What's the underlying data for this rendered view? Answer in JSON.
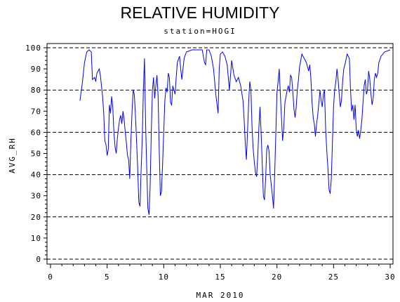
{
  "chart_data": {
    "type": "line",
    "title": "RELATIVE HUMIDITY",
    "subtitle": "station=HOGI",
    "xlabel": "MAR 2010",
    "ylabel": "AVG_RH",
    "xlim": [
      0,
      30
    ],
    "ylim": [
      0,
      100
    ],
    "x_ticks": [
      0,
      5,
      10,
      15,
      20,
      25,
      30
    ],
    "y_ticks": [
      0,
      10,
      20,
      30,
      40,
      50,
      60,
      70,
      80,
      90,
      100
    ],
    "grid": "dashed horizontal lines at 0, 20, 40, 60, 80, 100",
    "grid_y": [
      0,
      20,
      40,
      60,
      80,
      100
    ],
    "line_color": "#0000ff",
    "series": [
      {
        "values": [
          [
            2.6,
            75
          ],
          [
            2.8,
            83
          ],
          [
            3.0,
            93
          ],
          [
            3.2,
            98
          ],
          [
            3.4,
            99
          ],
          [
            3.6,
            98
          ],
          [
            3.7,
            85
          ],
          [
            3.9,
            86
          ],
          [
            4.0,
            84
          ],
          [
            4.1,
            88
          ],
          [
            4.2,
            89
          ],
          [
            4.3,
            90
          ],
          [
            4.4,
            87
          ],
          [
            4.5,
            82
          ],
          [
            4.6,
            77
          ],
          [
            4.7,
            69
          ],
          [
            4.8,
            56
          ],
          [
            4.9,
            54
          ],
          [
            5.0,
            49
          ],
          [
            5.1,
            52
          ],
          [
            5.2,
            73
          ],
          [
            5.3,
            69
          ],
          [
            5.4,
            77
          ],
          [
            5.5,
            72
          ],
          [
            5.6,
            60
          ],
          [
            5.7,
            53
          ],
          [
            5.8,
            50
          ],
          [
            5.9,
            57
          ],
          [
            6.0,
            62
          ],
          [
            6.1,
            66
          ],
          [
            6.2,
            68
          ],
          [
            6.3,
            64
          ],
          [
            6.4,
            70
          ],
          [
            6.5,
            66
          ],
          [
            6.6,
            60
          ],
          [
            6.7,
            55
          ],
          [
            6.8,
            49
          ],
          [
            6.9,
            47
          ],
          [
            7.0,
            38
          ],
          [
            7.1,
            56
          ],
          [
            7.2,
            70
          ],
          [
            7.3,
            80
          ],
          [
            7.4,
            78
          ],
          [
            7.5,
            68
          ],
          [
            7.6,
            56
          ],
          [
            7.7,
            43
          ],
          [
            7.8,
            27
          ],
          [
            7.9,
            25
          ],
          [
            8.0,
            42
          ],
          [
            8.1,
            57
          ],
          [
            8.2,
            80
          ],
          [
            8.3,
            95
          ],
          [
            8.4,
            64
          ],
          [
            8.5,
            43
          ],
          [
            8.6,
            24
          ],
          [
            8.7,
            21
          ],
          [
            8.8,
            35
          ],
          [
            8.9,
            60
          ],
          [
            9.0,
            80
          ],
          [
            9.1,
            86
          ],
          [
            9.2,
            76
          ],
          [
            9.3,
            82
          ],
          [
            9.4,
            87
          ],
          [
            9.5,
            77
          ],
          [
            9.6,
            52
          ],
          [
            9.7,
            30
          ],
          [
            9.8,
            32
          ],
          [
            9.9,
            45
          ],
          [
            10.0,
            60
          ],
          [
            10.1,
            75
          ],
          [
            10.2,
            81
          ],
          [
            10.3,
            79
          ],
          [
            10.4,
            88
          ],
          [
            10.5,
            86
          ],
          [
            10.6,
            74
          ],
          [
            10.7,
            73
          ],
          [
            10.8,
            82
          ],
          [
            10.9,
            80
          ],
          [
            11.0,
            78
          ],
          [
            11.1,
            86
          ],
          [
            11.2,
            93
          ],
          [
            11.4,
            96
          ],
          [
            11.5,
            90
          ],
          [
            11.6,
            85
          ],
          [
            11.8,
            95
          ],
          [
            12.0,
            98
          ],
          [
            12.5,
            99
          ],
          [
            13.0,
            99
          ],
          [
            13.4,
            99
          ],
          [
            13.6,
            93
          ],
          [
            13.7,
            92
          ],
          [
            13.8,
            99
          ],
          [
            14.0,
            99
          ],
          [
            14.2,
            96
          ],
          [
            14.4,
            90
          ],
          [
            14.6,
            78
          ],
          [
            14.8,
            69
          ],
          [
            14.9,
            90
          ],
          [
            15.0,
            97
          ],
          [
            15.2,
            98
          ],
          [
            15.4,
            96
          ],
          [
            15.6,
            92
          ],
          [
            15.8,
            80
          ],
          [
            16.0,
            94
          ],
          [
            16.2,
            87
          ],
          [
            16.4,
            84
          ],
          [
            16.6,
            86
          ],
          [
            16.8,
            82
          ],
          [
            17.0,
            75
          ],
          [
            17.1,
            66
          ],
          [
            17.2,
            55
          ],
          [
            17.3,
            47
          ],
          [
            17.4,
            60
          ],
          [
            17.5,
            74
          ],
          [
            17.6,
            84
          ],
          [
            17.7,
            80
          ],
          [
            17.8,
            62
          ],
          [
            17.9,
            52
          ],
          [
            18.0,
            46
          ],
          [
            18.1,
            41
          ],
          [
            18.2,
            39
          ],
          [
            18.3,
            48
          ],
          [
            18.4,
            62
          ],
          [
            18.5,
            72
          ],
          [
            18.6,
            60
          ],
          [
            18.7,
            45
          ],
          [
            18.8,
            30
          ],
          [
            18.9,
            28
          ],
          [
            19.0,
            38
          ],
          [
            19.1,
            52
          ],
          [
            19.2,
            54
          ],
          [
            19.3,
            51
          ],
          [
            19.4,
            40
          ],
          [
            19.5,
            35
          ],
          [
            19.6,
            30
          ],
          [
            19.7,
            24
          ],
          [
            19.8,
            40
          ],
          [
            19.9,
            60
          ],
          [
            20.0,
            79
          ],
          [
            20.1,
            84
          ],
          [
            20.2,
            90
          ],
          [
            20.3,
            78
          ],
          [
            20.4,
            67
          ],
          [
            20.5,
            56
          ],
          [
            20.6,
            62
          ],
          [
            20.7,
            74
          ],
          [
            20.8,
            77
          ],
          [
            20.9,
            80
          ],
          [
            21.0,
            82
          ],
          [
            21.1,
            79
          ],
          [
            21.2,
            87
          ],
          [
            21.3,
            86
          ],
          [
            21.4,
            79
          ],
          [
            21.5,
            71
          ],
          [
            21.6,
            67
          ],
          [
            21.7,
            72
          ],
          [
            21.8,
            80
          ],
          [
            21.9,
            85
          ],
          [
            22.0,
            91
          ],
          [
            22.2,
            97
          ],
          [
            22.4,
            95
          ],
          [
            22.6,
            93
          ],
          [
            22.8,
            89
          ],
          [
            22.9,
            92
          ],
          [
            23.0,
            85
          ],
          [
            23.1,
            74
          ],
          [
            23.2,
            67
          ],
          [
            23.3,
            64
          ],
          [
            23.4,
            58
          ],
          [
            23.5,
            64
          ],
          [
            23.6,
            68
          ],
          [
            23.7,
            74
          ],
          [
            23.8,
            80
          ],
          [
            23.9,
            75
          ],
          [
            24.0,
            72
          ],
          [
            24.1,
            78
          ],
          [
            24.2,
            80
          ],
          [
            24.3,
            62
          ],
          [
            24.4,
            51
          ],
          [
            24.5,
            43
          ],
          [
            24.6,
            33
          ],
          [
            24.7,
            31
          ],
          [
            24.8,
            38
          ],
          [
            24.9,
            55
          ],
          [
            25.0,
            72
          ],
          [
            25.1,
            80
          ],
          [
            25.2,
            84
          ],
          [
            25.3,
            90
          ],
          [
            25.4,
            85
          ],
          [
            25.5,
            78
          ],
          [
            25.6,
            72
          ],
          [
            25.7,
            75
          ],
          [
            25.8,
            84
          ],
          [
            25.9,
            90
          ],
          [
            26.0,
            92
          ],
          [
            26.2,
            97
          ],
          [
            26.4,
            95
          ],
          [
            26.5,
            80
          ],
          [
            26.6,
            70
          ],
          [
            26.7,
            73
          ],
          [
            26.8,
            66
          ],
          [
            26.9,
            73
          ],
          [
            27.0,
            62
          ],
          [
            27.1,
            58
          ],
          [
            27.2,
            61
          ],
          [
            27.3,
            57
          ],
          [
            27.4,
            61
          ],
          [
            27.5,
            66
          ],
          [
            27.6,
            74
          ],
          [
            27.7,
            82
          ],
          [
            27.8,
            85
          ],
          [
            27.9,
            78
          ],
          [
            28.0,
            80
          ],
          [
            28.1,
            89
          ],
          [
            28.2,
            85
          ],
          [
            28.3,
            78
          ],
          [
            28.4,
            73
          ],
          [
            28.5,
            76
          ],
          [
            28.6,
            85
          ],
          [
            28.7,
            88
          ],
          [
            28.8,
            86
          ],
          [
            28.9,
            88
          ],
          [
            29.0,
            93
          ],
          [
            29.2,
            96
          ],
          [
            29.5,
            98
          ],
          [
            30.0,
            99
          ]
        ]
      }
    ]
  }
}
